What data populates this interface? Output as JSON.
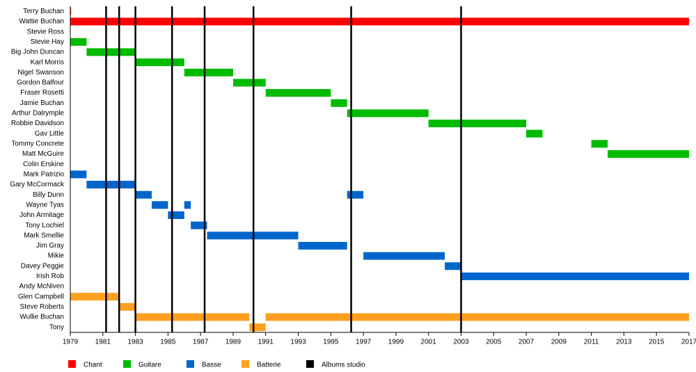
{
  "chart_data": {
    "type": "timeline",
    "categories": [
      "Terry Buchan",
      "Wattie Buchan",
      "Stevie Ross",
      "Stevie Hay",
      "Big John Duncan",
      "Karl Morris",
      "Nigel Swanson",
      "Gordon Balfour",
      "Fraser Rosetti",
      "Jamie Buchan",
      "Arthur Dalrymple",
      "Robbie Davidson",
      "Gav Little",
      "Tommy Concrete",
      "Matt McGuire",
      "Colin Erskine",
      "Mark Patrizio",
      "Gary McCormack",
      "Billy Dunn",
      "Wayne Tyas",
      "John Armitage",
      "Tony Lochiel",
      "Mark Smellie",
      "Jim Gray",
      "Mikie",
      "Davey Peggie",
      "Irish Rob",
      "Andy McNiven",
      "Glen Campbell",
      "Steve Roberts",
      "Wullie Buchan",
      "Tony"
    ],
    "series": [
      {
        "name": "Chant",
        "color": "#ff0000",
        "values": [
          [
            [
              1979,
              1979.05
            ]
          ],
          [
            [
              1979,
              2017
            ]
          ],
          null,
          null,
          null,
          null,
          null,
          null,
          null,
          null,
          null,
          null,
          null,
          null,
          null,
          null,
          null,
          null,
          null,
          null,
          null,
          null,
          null,
          null,
          null,
          null,
          null,
          null,
          null,
          null,
          null,
          null
        ]
      },
      {
        "name": "Guitare",
        "color": "#00bb00",
        "values": [
          null,
          null,
          null,
          [
            [
              1979,
              1980
            ]
          ],
          [
            [
              1980,
              1983
            ]
          ],
          [
            [
              1983,
              1986
            ]
          ],
          [
            [
              1986,
              1989
            ]
          ],
          [
            [
              1989,
              1991
            ]
          ],
          [
            [
              1991,
              1995
            ]
          ],
          [
            [
              1995,
              1996
            ]
          ],
          [
            [
              1996,
              2001
            ]
          ],
          [
            [
              2001,
              2007
            ]
          ],
          [
            [
              2007,
              2008
            ]
          ],
          [
            [
              2011,
              2012
            ]
          ],
          [
            [
              2012,
              2017
            ]
          ],
          null,
          null,
          null,
          null,
          null,
          null,
          null,
          null,
          null,
          null,
          null,
          null,
          null,
          null,
          null,
          null,
          null
        ]
      },
      {
        "name": "Basse",
        "color": "#0066cc",
        "values": [
          null,
          null,
          null,
          null,
          null,
          null,
          null,
          null,
          null,
          null,
          null,
          null,
          null,
          null,
          null,
          null,
          [
            [
              1979,
              1980
            ]
          ],
          [
            [
              1980,
              1983
            ]
          ],
          [
            [
              1983,
              1984
            ],
            [
              1996,
              1997
            ]
          ],
          [
            [
              1984,
              1985
            ],
            [
              1986,
              1986.4
            ]
          ],
          [
            [
              1985,
              1986
            ]
          ],
          [
            [
              1986.4,
              1987.4
            ]
          ],
          [
            [
              1987.4,
              1993
            ]
          ],
          [
            [
              1993,
              1996
            ]
          ],
          [
            [
              1997,
              2002
            ]
          ],
          [
            [
              2002,
              2003
            ]
          ],
          [
            [
              2003,
              2017
            ]
          ],
          null,
          null,
          null,
          null,
          null
        ]
      },
      {
        "name": "Batterie",
        "color": "#ffa020",
        "values": [
          null,
          null,
          null,
          null,
          null,
          null,
          null,
          null,
          null,
          null,
          null,
          null,
          null,
          null,
          null,
          null,
          null,
          null,
          null,
          null,
          null,
          null,
          null,
          null,
          null,
          null,
          null,
          null,
          [
            [
              1979,
              1982
            ]
          ],
          [
            [
              1982,
              1983
            ]
          ],
          [
            [
              1983,
              1990
            ],
            [
              1991,
              2017
            ]
          ],
          [
            [
              1990,
              1991
            ]
          ]
        ]
      },
      {
        "name": "Albums studio",
        "color": "#000000",
        "lines": [
          1981.2,
          1982,
          1983,
          1985.25,
          1987.25,
          1990.25,
          1996.25,
          2003
        ]
      }
    ],
    "xlim": [
      1979,
      2017
    ],
    "xticks": [
      1979,
      1981,
      1983,
      1985,
      1987,
      1989,
      1991,
      1993,
      1995,
      1997,
      1999,
      2001,
      2003,
      2005,
      2007,
      2009,
      2011,
      2013,
      2015,
      2017
    ]
  }
}
